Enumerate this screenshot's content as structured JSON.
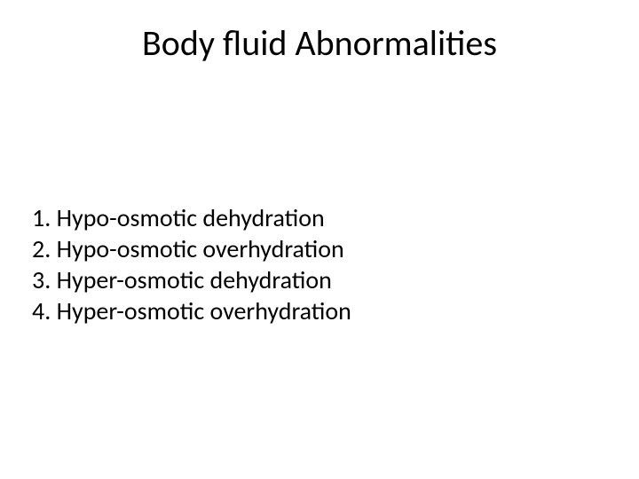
{
  "slide": {
    "title": "Body fluid Abnormalities",
    "title_fontsize": 40,
    "title_color": "#000000",
    "background_color": "#ffffff",
    "list_fontsize": 28,
    "list_color": "#000000",
    "items": [
      "1. Hypo-osmotic dehydration",
      "2. Hypo-osmotic overhydration",
      "3. Hyper-osmotic dehydration",
      "4. Hyper-osmotic overhydration"
    ]
  }
}
